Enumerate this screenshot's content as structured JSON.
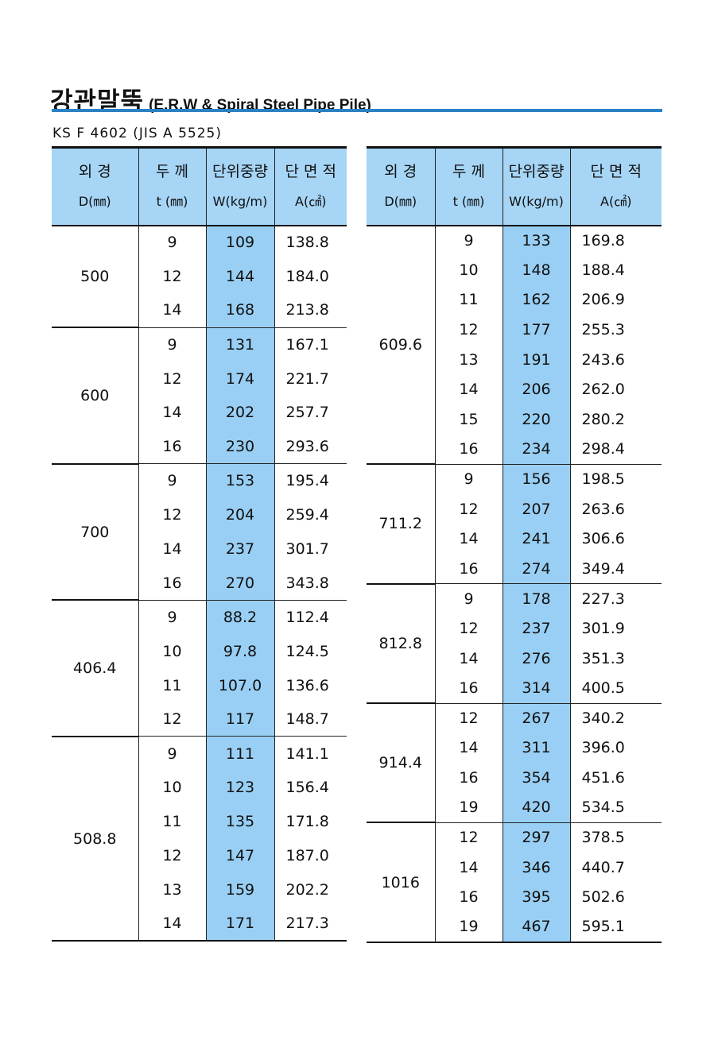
{
  "title": {
    "korean": "강관말뚝",
    "english": "(E.R.W & Spiral Steel Pipe Pile)"
  },
  "standard": "KS F 4602 (JIS A 5525)",
  "headers": [
    {
      "label": "외    경",
      "unit": "D(㎜)"
    },
    {
      "label": "두    께",
      "unit": "t (㎜)"
    },
    {
      "label": "단위중량",
      "unit": "W(kg/m)"
    },
    {
      "label": "단 면 적",
      "unit": "A(㎠)"
    }
  ],
  "colors": {
    "header_bg": "#a6d5f6",
    "weight_column_bg": "#99cff4",
    "title_rule": "#2a82c6"
  },
  "left_table": [
    {
      "d": "500",
      "rows": [
        [
          "9",
          "109",
          "138.8"
        ],
        [
          "12",
          "144",
          "184.0"
        ],
        [
          "14",
          "168",
          "213.8"
        ]
      ]
    },
    {
      "d": "600",
      "rows": [
        [
          "9",
          "131",
          "167.1"
        ],
        [
          "12",
          "174",
          "221.7"
        ],
        [
          "14",
          "202",
          "257.7"
        ],
        [
          "16",
          "230",
          "293.6"
        ]
      ]
    },
    {
      "d": "700",
      "rows": [
        [
          "9",
          "153",
          "195.4"
        ],
        [
          "12",
          "204",
          "259.4"
        ],
        [
          "14",
          "237",
          "301.7"
        ],
        [
          "16",
          "270",
          "343.8"
        ]
      ]
    },
    {
      "d": "406.4",
      "rows": [
        [
          "9",
          "88.2",
          "112.4"
        ],
        [
          "10",
          "97.8",
          "124.5"
        ],
        [
          "11",
          "107.0",
          "136.6"
        ],
        [
          "12",
          "117",
          "148.7"
        ]
      ]
    },
    {
      "d": "508.8",
      "rows": [
        [
          "9",
          "111",
          "141.1"
        ],
        [
          "10",
          "123",
          "156.4"
        ],
        [
          "11",
          "135",
          "171.8"
        ],
        [
          "12",
          "147",
          "187.0"
        ],
        [
          "13",
          "159",
          "202.2"
        ],
        [
          "14",
          "171",
          "217.3"
        ]
      ]
    }
  ],
  "right_table": [
    {
      "d": "609.6",
      "rows": [
        [
          "9",
          "133",
          "169.8"
        ],
        [
          "10",
          "148",
          "188.4"
        ],
        [
          "11",
          "162",
          "206.9"
        ],
        [
          "12",
          "177",
          "255.3"
        ],
        [
          "13",
          "191",
          "243.6"
        ],
        [
          "14",
          "206",
          "262.0"
        ],
        [
          "15",
          "220",
          "280.2"
        ],
        [
          "16",
          "234",
          "298.4"
        ]
      ]
    },
    {
      "d": "711.2",
      "rows": [
        [
          "9",
          "156",
          "198.5"
        ],
        [
          "12",
          "207",
          "263.6"
        ],
        [
          "14",
          "241",
          "306.6"
        ],
        [
          "16",
          "274",
          "349.4"
        ]
      ]
    },
    {
      "d": "812.8",
      "rows": [
        [
          "9",
          "178",
          "227.3"
        ],
        [
          "12",
          "237",
          "301.9"
        ],
        [
          "14",
          "276",
          "351.3"
        ],
        [
          "16",
          "314",
          "400.5"
        ]
      ]
    },
    {
      "d": "914.4",
      "rows": [
        [
          "12",
          "267",
          "340.2"
        ],
        [
          "14",
          "311",
          "396.0"
        ],
        [
          "16",
          "354",
          "451.6"
        ],
        [
          "19",
          "420",
          "534.5"
        ]
      ]
    },
    {
      "d": "1016",
      "rows": [
        [
          "12",
          "297",
          "378.5"
        ],
        [
          "14",
          "346",
          "440.7"
        ],
        [
          "16",
          "395",
          "502.6"
        ],
        [
          "19",
          "467",
          "595.1"
        ]
      ]
    }
  ]
}
